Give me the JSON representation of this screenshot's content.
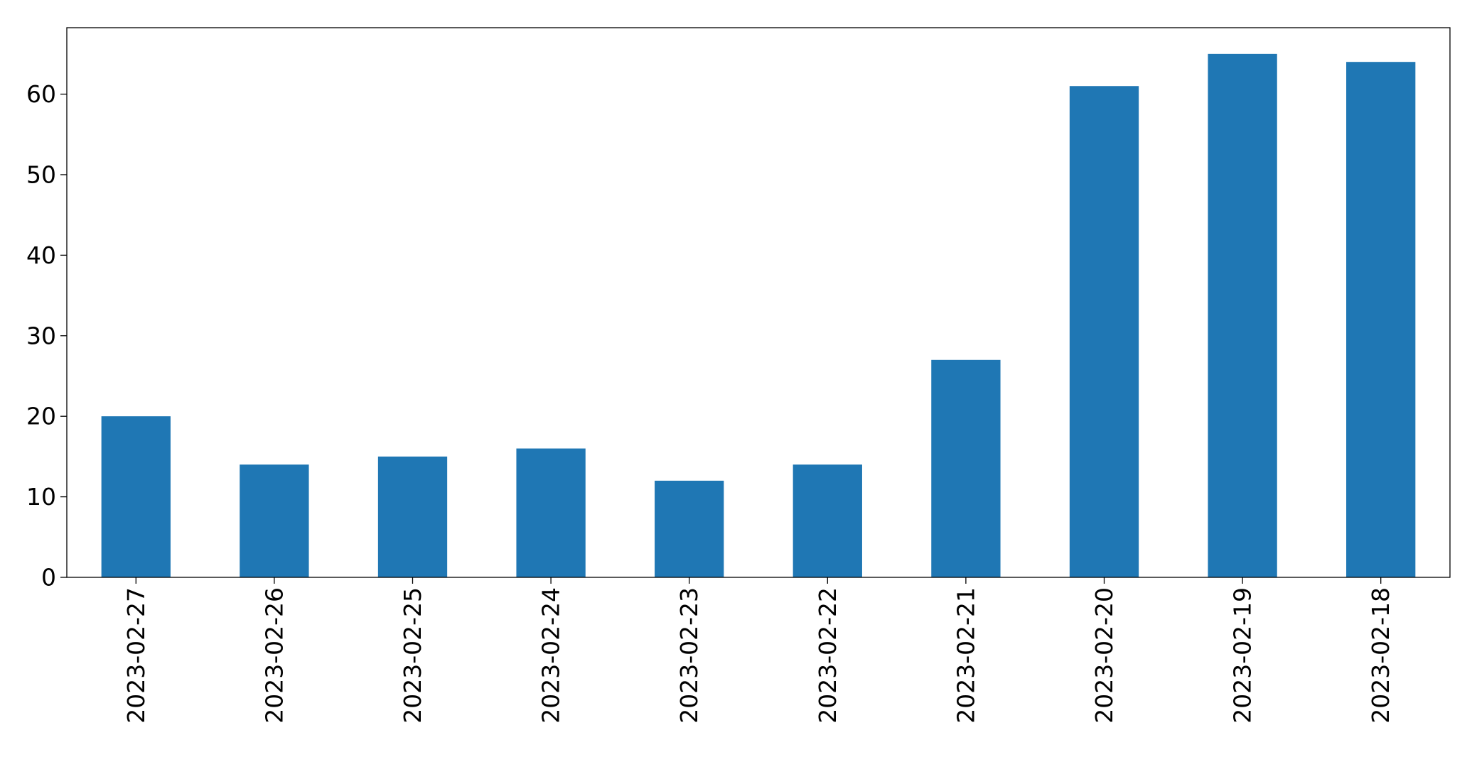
{
  "chart_data": {
    "type": "bar",
    "categories": [
      "2023-02-27",
      "2023-02-26",
      "2023-02-25",
      "2023-02-24",
      "2023-02-23",
      "2023-02-22",
      "2023-02-21",
      "2023-02-20",
      "2023-02-19",
      "2023-02-18"
    ],
    "values": [
      20,
      14,
      15,
      16,
      12,
      14,
      27,
      61,
      65,
      64
    ],
    "title": "",
    "xlabel": "",
    "ylabel": "",
    "ylim": [
      0,
      68.25
    ],
    "yticks": [
      0,
      10,
      20,
      30,
      40,
      50,
      60
    ],
    "grid": false,
    "bar_color": "#1f77b4"
  }
}
